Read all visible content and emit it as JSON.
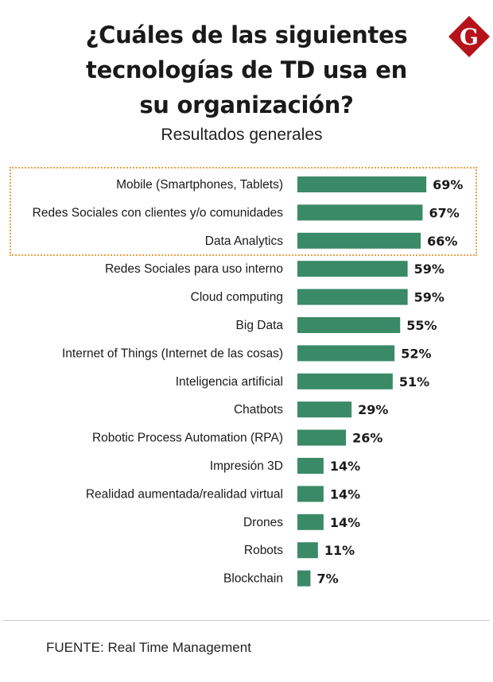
{
  "header": {
    "title_lines": [
      "¿Cuáles de las siguientes",
      "tecnologías de TD usa en",
      "su organización?"
    ],
    "subtitle": "Resultados generales",
    "logo_letter": "G",
    "logo_color": "#b5121b"
  },
  "chart_data": {
    "type": "bar",
    "orientation": "horizontal",
    "title": "¿Cuáles de las siguientes tecnologías de TD usa en su organización?",
    "subtitle": "Resultados generales",
    "categories": [
      "Mobile (Smartphones, Tablets)",
      "Redes Sociales con clientes y/o comunidades",
      "Data Analytics",
      "Redes Sociales para uso interno",
      "Cloud computing",
      "Big Data",
      "Internet of Things (Internet de las cosas)",
      "Inteligencia artificial",
      "Chatbots",
      "Robotic Process Automation (RPA)",
      "Impresión 3D",
      "Realidad aumentada/realidad virtual",
      "Drones",
      "Robots",
      "Blockchain"
    ],
    "values": [
      69,
      67,
      66,
      59,
      59,
      55,
      52,
      51,
      29,
      26,
      14,
      14,
      14,
      11,
      7
    ],
    "labels": [
      "69%",
      "67%",
      "66%",
      "59%",
      "59%",
      "55%",
      "52%",
      "51%",
      "29%",
      "26%",
      "14%",
      "14%",
      "14%",
      "11%",
      "7%"
    ],
    "unit": "%",
    "highlighted_top": 3,
    "bar_color": "#3a8a68",
    "highlight_color": "#e8a24a",
    "grid": false
  },
  "footer": {
    "source": "FUENTE: Real Time Management"
  }
}
